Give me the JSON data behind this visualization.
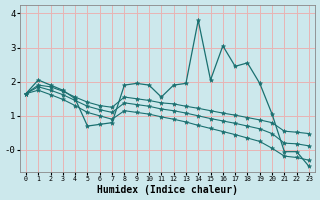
{
  "xlabel": "Humidex (Indice chaleur)",
  "bg_color": "#cce8ec",
  "grid_color": "#e8b4b4",
  "line_color": "#1a7070",
  "xlim": [
    -0.5,
    23.5
  ],
  "ylim": [
    -0.65,
    4.25
  ],
  "x": [
    0,
    1,
    2,
    3,
    4,
    5,
    6,
    7,
    8,
    9,
    10,
    11,
    12,
    13,
    14,
    15,
    16,
    17,
    18,
    19,
    20,
    21,
    22,
    23
  ],
  "line_jagged": [
    1.65,
    2.05,
    1.9,
    1.75,
    1.5,
    0.7,
    0.75,
    0.8,
    1.9,
    1.95,
    1.9,
    1.55,
    1.9,
    1.95,
    3.8,
    2.05,
    3.05,
    2.45,
    2.55,
    1.95,
    1.05,
    -0.05,
    -0.05,
    -0.48
  ],
  "line_top": [
    1.65,
    1.9,
    1.85,
    1.72,
    1.55,
    1.4,
    1.3,
    1.25,
    1.55,
    1.5,
    1.45,
    1.38,
    1.35,
    1.28,
    1.22,
    1.15,
    1.08,
    1.02,
    0.95,
    0.88,
    0.8,
    0.55,
    0.52,
    0.48
  ],
  "line_mid": [
    1.65,
    1.85,
    1.75,
    1.62,
    1.45,
    1.28,
    1.18,
    1.1,
    1.38,
    1.33,
    1.28,
    1.2,
    1.15,
    1.08,
    1.0,
    0.92,
    0.85,
    0.78,
    0.7,
    0.62,
    0.48,
    0.2,
    0.18,
    0.12
  ],
  "line_bot": [
    1.65,
    1.75,
    1.62,
    1.48,
    1.3,
    1.1,
    1.0,
    0.9,
    1.15,
    1.1,
    1.05,
    0.97,
    0.9,
    0.82,
    0.72,
    0.63,
    0.54,
    0.45,
    0.35,
    0.25,
    0.05,
    -0.18,
    -0.22,
    -0.3
  ]
}
